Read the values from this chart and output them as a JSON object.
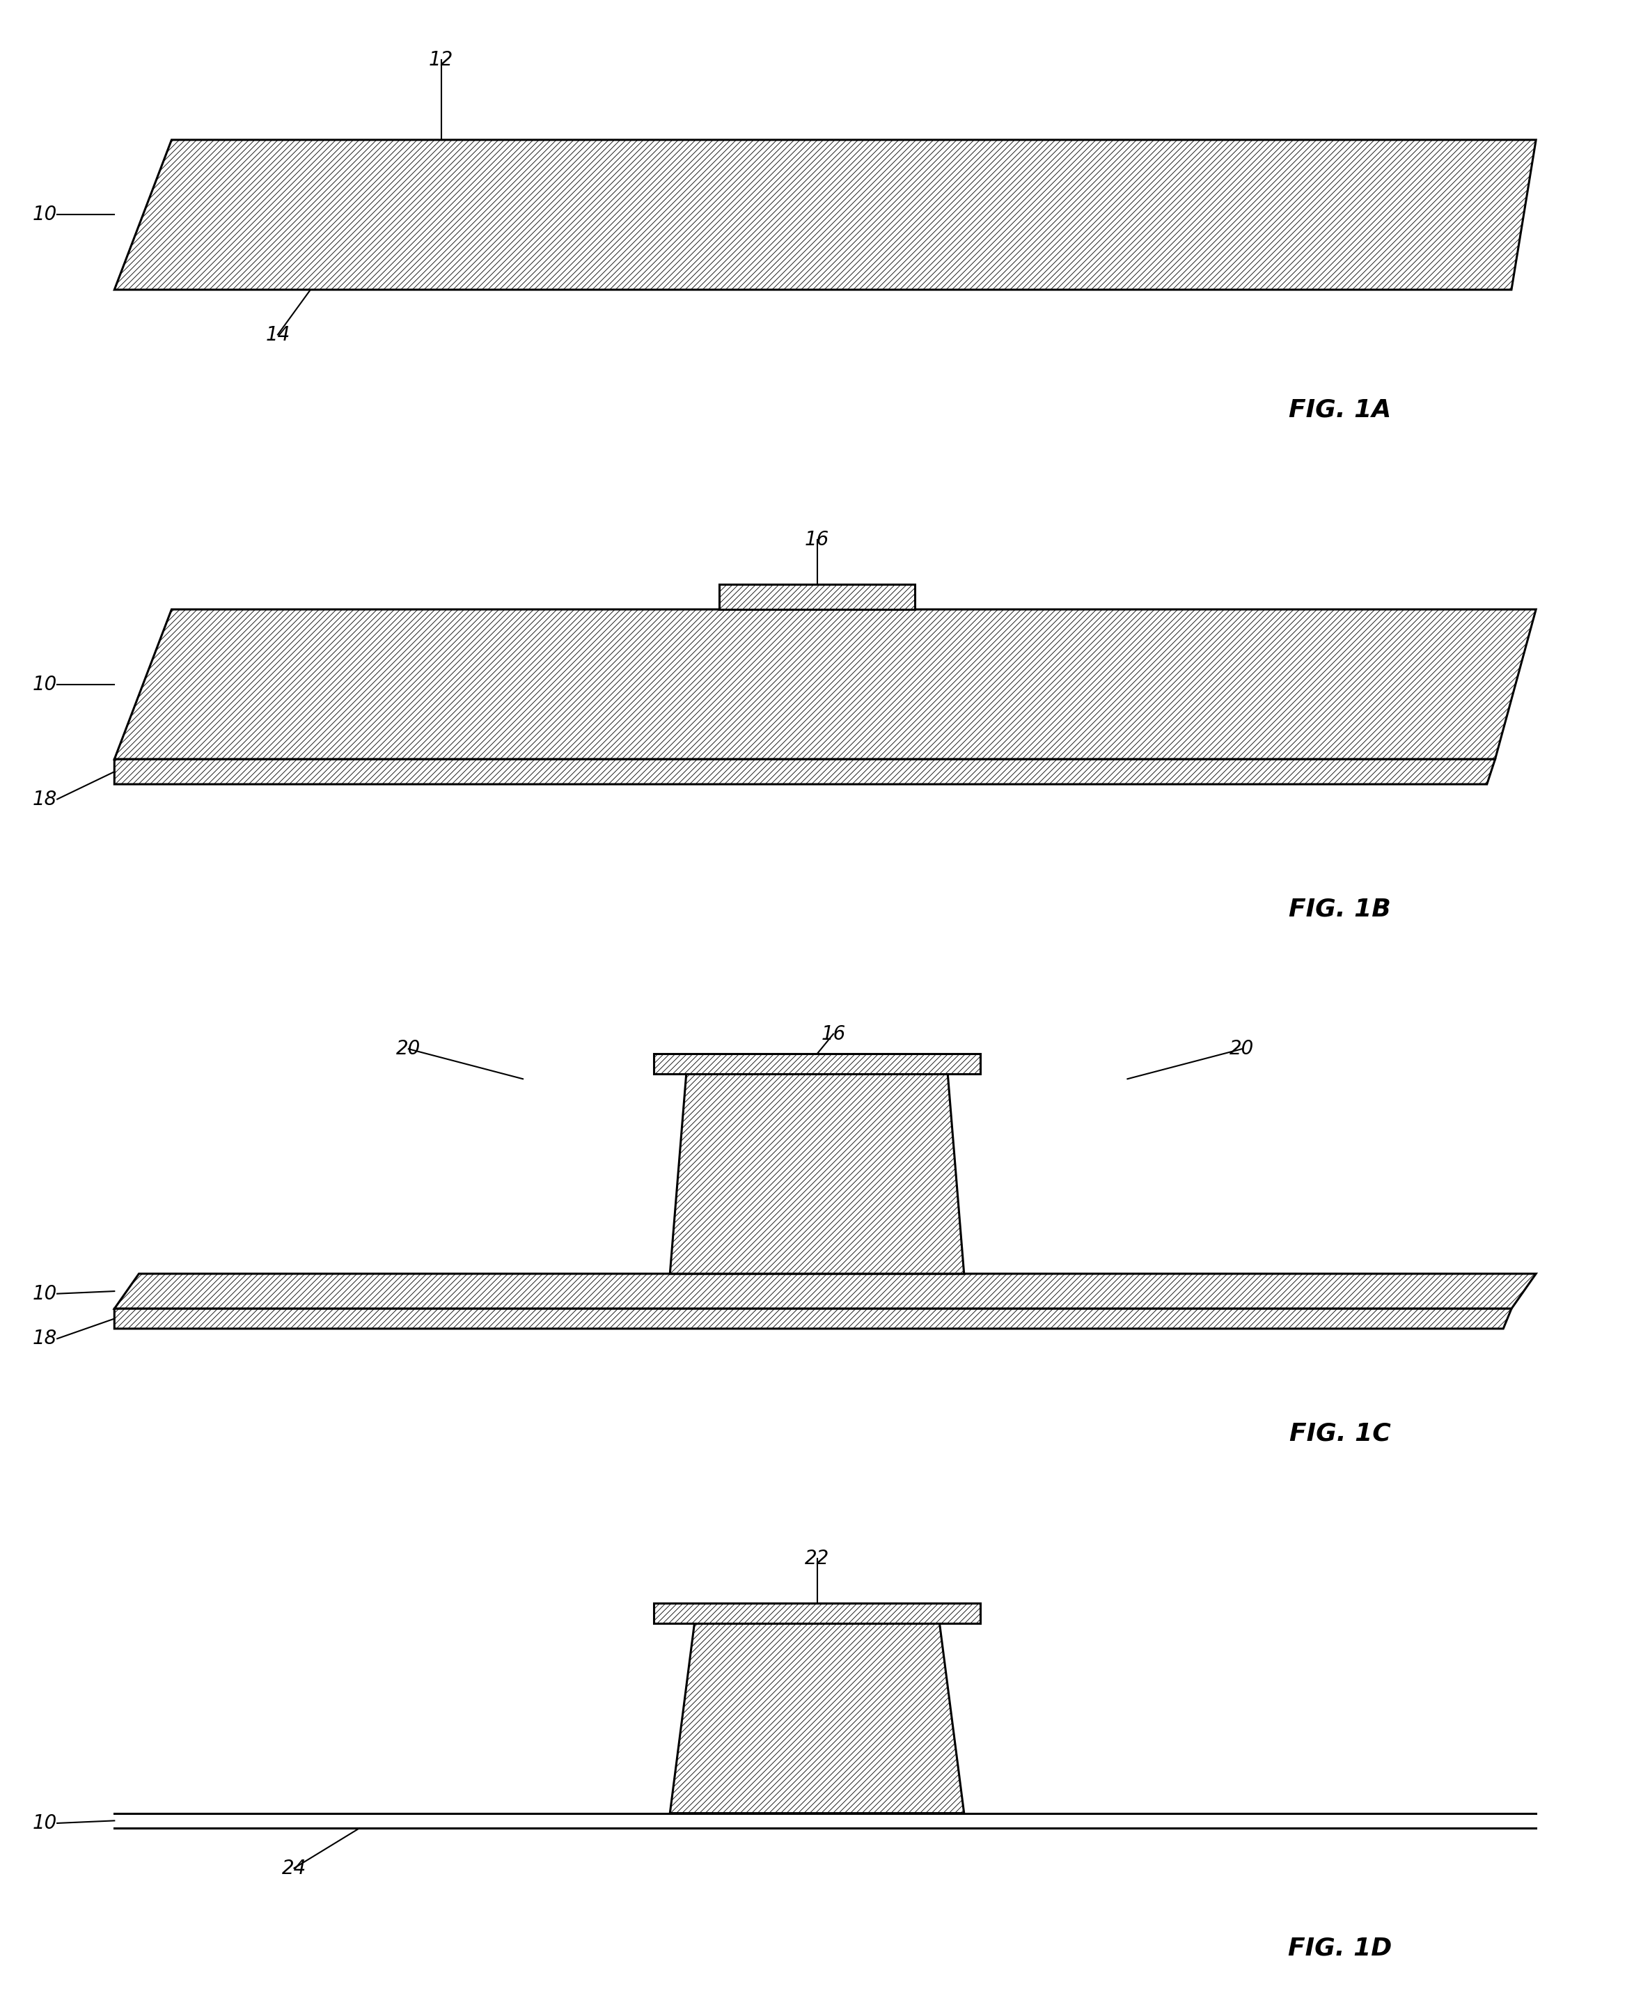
{
  "bg_color": "#ffffff",
  "line_color": "#000000",
  "fig_width": 23.47,
  "fig_height": 28.69,
  "hatch_pattern": "////",
  "hatch_lw": 0.6,
  "border_lw": 2.2,
  "annotation_fontsize": 20,
  "fig_label_fontsize": 26,
  "panels": [
    "FIG. 1A",
    "FIG. 1B",
    "FIG. 1C",
    "FIG. 1D"
  ]
}
